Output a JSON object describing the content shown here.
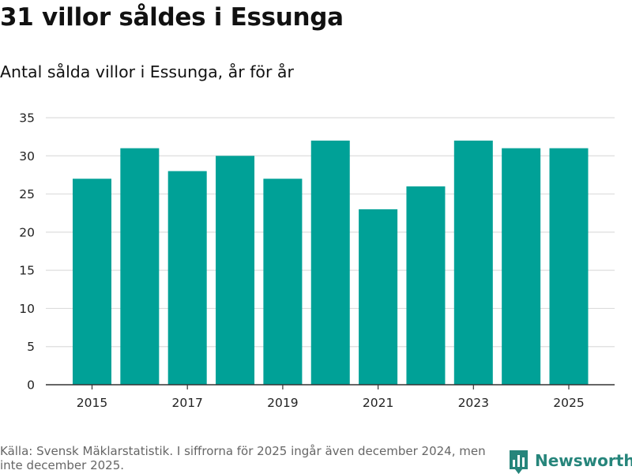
{
  "title": "31 villor såldes i Essunga",
  "subtitle": "Antal sålda villor i Essunga, år för år",
  "source": "Källa: Svensk Mäklarstatistik. I siffrorna för 2025 ingår även december 2024, men inte december 2025.",
  "brand": "Newsworthy",
  "colors": {
    "bar": "#00a197",
    "brand": "#26857b",
    "grid": "#dddddd",
    "axis": "#333333"
  },
  "chart_data": {
    "type": "bar",
    "title": "31 villor såldes i Essunga",
    "subtitle": "Antal sålda villor i Essunga, år för år",
    "xlabel": "",
    "ylabel": "",
    "categories": [
      "2015",
      "2016",
      "2017",
      "2018",
      "2019",
      "2020",
      "2021",
      "2022",
      "2023",
      "2024",
      "2025"
    ],
    "values": [
      27,
      31,
      28,
      30,
      27,
      32,
      23,
      26,
      32,
      31,
      31
    ],
    "ylim": [
      0,
      35
    ],
    "yticks": [
      0,
      5,
      10,
      15,
      20,
      25,
      30,
      35
    ],
    "xtick_labels": [
      "2015",
      "2017",
      "2019",
      "2021",
      "2023",
      "2025"
    ],
    "grid": true,
    "legend": "none"
  }
}
